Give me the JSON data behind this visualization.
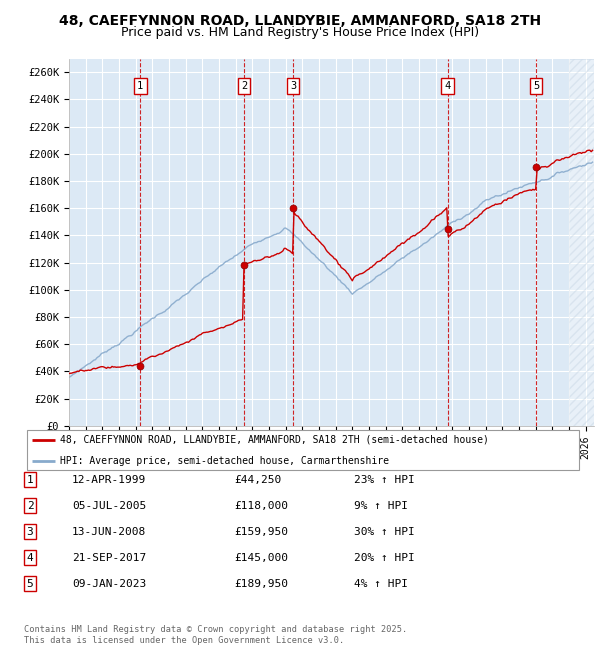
{
  "title": "48, CAEFFYNNON ROAD, LLANDYBIE, AMMANFORD, SA18 2TH",
  "subtitle": "Price paid vs. HM Land Registry's House Price Index (HPI)",
  "ylim": [
    0,
    270000
  ],
  "yticks": [
    0,
    20000,
    40000,
    60000,
    80000,
    100000,
    120000,
    140000,
    160000,
    180000,
    200000,
    220000,
    240000,
    260000
  ],
  "xlim_start": 1995.0,
  "xlim_end": 2026.5,
  "bg_color": "#dce9f5",
  "grid_color": "#ffffff",
  "sale_dates": [
    1999.28,
    2005.5,
    2008.45,
    2017.72,
    2023.03
  ],
  "sale_prices": [
    44250,
    118000,
    159950,
    145000,
    189950
  ],
  "sale_labels": [
    "1",
    "2",
    "3",
    "4",
    "5"
  ],
  "vline_color": "#cc0000",
  "red_line_color": "#cc0000",
  "blue_line_color": "#88aacc",
  "legend_red_label": "48, CAEFFYNNON ROAD, LLANDYBIE, AMMANFORD, SA18 2TH (semi-detached house)",
  "legend_blue_label": "HPI: Average price, semi-detached house, Carmarthenshire",
  "table_rows": [
    [
      "1",
      "12-APR-1999",
      "£44,250",
      "23% ↑ HPI"
    ],
    [
      "2",
      "05-JUL-2005",
      "£118,000",
      "9% ↑ HPI"
    ],
    [
      "3",
      "13-JUN-2008",
      "£159,950",
      "30% ↑ HPI"
    ],
    [
      "4",
      "21-SEP-2017",
      "£145,000",
      "20% ↑ HPI"
    ],
    [
      "5",
      "09-JAN-2023",
      "£189,950",
      "4% ↑ HPI"
    ]
  ],
  "footer": "Contains HM Land Registry data © Crown copyright and database right 2025.\nThis data is licensed under the Open Government Licence v3.0.",
  "title_fontsize": 10,
  "subtitle_fontsize": 9
}
